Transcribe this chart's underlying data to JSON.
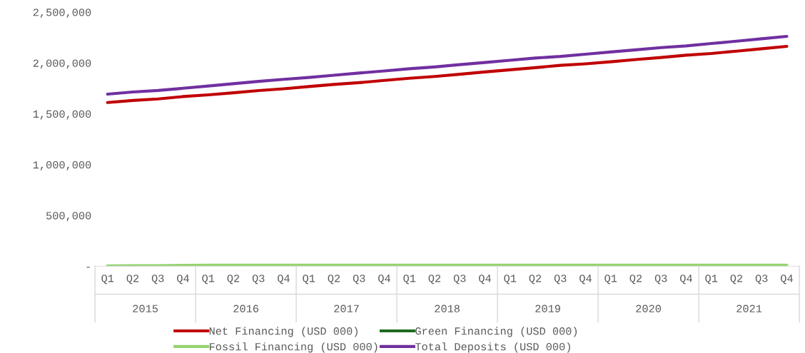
{
  "chart_data": {
    "type": "line",
    "categories": [
      "Q1",
      "Q2",
      "Q3",
      "Q4",
      "Q1",
      "Q2",
      "Q3",
      "Q4",
      "Q1",
      "Q2",
      "Q3",
      "Q4",
      "Q1",
      "Q2",
      "Q3",
      "Q4",
      "Q1",
      "Q2",
      "Q3",
      "Q4",
      "Q1",
      "Q2",
      "Q3",
      "Q4",
      "Q1",
      "Q2",
      "Q3",
      "Q4"
    ],
    "annotations": [
      "2015",
      "2016",
      "2017",
      "2018",
      "2019",
      "2020",
      "2021"
    ],
    "series": [
      {
        "name": "Net Financing (USD 000)",
        "color": "#c00000",
        "values": [
          1610000,
          1630000,
          1645000,
          1668000,
          1685000,
          1705000,
          1727000,
          1745000,
          1767000,
          1788000,
          1805000,
          1827000,
          1848000,
          1866000,
          1888000,
          1910000,
          1932000,
          1953000,
          1975000,
          1990000,
          2010000,
          2032000,
          2053000,
          2075000,
          2092000,
          2115000,
          2138000,
          2162000
        ]
      },
      {
        "name": "Green Financing (USD 000)",
        "color": "#1e6b1e",
        "values": [
          null,
          null,
          null,
          null,
          null,
          null,
          null,
          null,
          null,
          null,
          null,
          null,
          null,
          null,
          null,
          null,
          null,
          null,
          null,
          null,
          null,
          null,
          null,
          null,
          null,
          null,
          null,
          null
        ]
      },
      {
        "name": "Fossil Financing (USD 000)",
        "color": "#92d36e",
        "values": [
          3000,
          4000,
          5000,
          8000,
          10000,
          10000,
          10000,
          10000,
          10000,
          10000,
          10000,
          10000,
          10000,
          10000,
          10000,
          10000,
          10000,
          10000,
          10000,
          10000,
          10000,
          10000,
          10000,
          10000,
          10000,
          10000,
          10000,
          10000
        ]
      },
      {
        "name": "Total Deposits (USD 000)",
        "color": "#7030a0",
        "values": [
          1692000,
          1713000,
          1728000,
          1750000,
          1772000,
          1795000,
          1817000,
          1838000,
          1856000,
          1878000,
          1900000,
          1920000,
          1942000,
          1960000,
          1982000,
          2003000,
          2025000,
          2047000,
          2063000,
          2085000,
          2107000,
          2128000,
          2150000,
          2167000,
          2190000,
          2213000,
          2237000,
          2260000
        ]
      }
    ],
    "ylim": [
      0,
      2500000
    ],
    "yticks": [
      {
        "value": 0,
        "label": "-"
      },
      {
        "value": 500000,
        "label": "500,000"
      },
      {
        "value": 1000000,
        "label": "1,000,000"
      },
      {
        "value": 1500000,
        "label": "1,500,000"
      },
      {
        "value": 2000000,
        "label": "2,000,000"
      },
      {
        "value": 2500000,
        "label": "2,500,000"
      }
    ],
    "grid": false,
    "legend": "bottom",
    "marker": "none",
    "line_style": "solid"
  }
}
